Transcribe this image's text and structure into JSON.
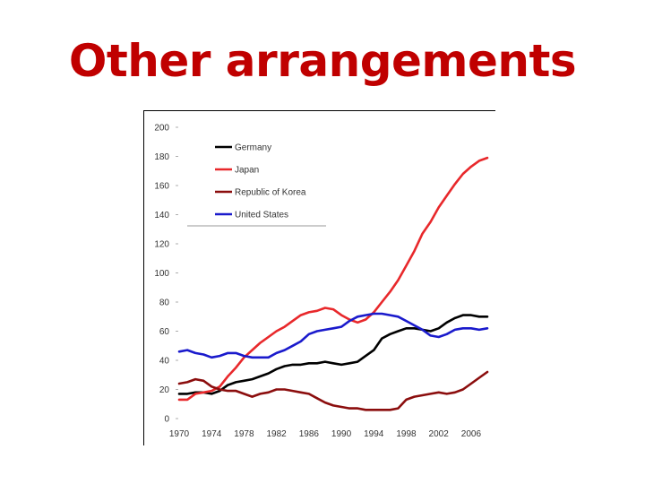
{
  "slide": {
    "title": "Other arrangements"
  },
  "colors": {
    "title": "#c00000",
    "germany": "#000000",
    "japan": "#e8282b",
    "korea": "#8b0d0d",
    "usa": "#1a1acc"
  },
  "chart_data": {
    "type": "line",
    "title": "",
    "xlabel": "",
    "ylabel": "",
    "xlim": [
      1970,
      2008
    ],
    "ylim": [
      0,
      200
    ],
    "yticks": [
      0,
      20,
      40,
      60,
      80,
      100,
      120,
      140,
      160,
      180,
      200
    ],
    "yticklabels": [
      "0",
      "20",
      "40",
      "60",
      "80",
      "100",
      "120",
      "140",
      "160",
      "180",
      "200"
    ],
    "xticks": [
      1970,
      1974,
      1978,
      1982,
      1986,
      1990,
      1994,
      1998,
      2002,
      2006
    ],
    "xticklabels": [
      "1970",
      "1974",
      "1978",
      "1982",
      "1986",
      "1990",
      "1994",
      "1998",
      "2002",
      "2006"
    ],
    "legend_position": "top-left",
    "x": [
      1970,
      1971,
      1972,
      1973,
      1974,
      1975,
      1976,
      1977,
      1978,
      1979,
      1980,
      1981,
      1982,
      1983,
      1984,
      1985,
      1986,
      1987,
      1988,
      1989,
      1990,
      1991,
      1992,
      1993,
      1994,
      1995,
      1996,
      1997,
      1998,
      1999,
      2000,
      2001,
      2002,
      2003,
      2004,
      2005,
      2006,
      2007,
      2008
    ],
    "series": [
      {
        "name": "Germany",
        "color": "#000000",
        "values": [
          17,
          17,
          18,
          18,
          17,
          19,
          23,
          25,
          26,
          27,
          29,
          31,
          34,
          36,
          37,
          37,
          38,
          38,
          39,
          38,
          37,
          38,
          39,
          43,
          47,
          55,
          58,
          60,
          62,
          62,
          61,
          60,
          62,
          66,
          69,
          71,
          71,
          70,
          70
        ]
      },
      {
        "name": "Japan",
        "color": "#e8282b",
        "values": [
          13,
          13,
          17,
          18,
          19,
          22,
          29,
          35,
          42,
          47,
          52,
          56,
          60,
          63,
          67,
          71,
          73,
          74,
          76,
          75,
          71,
          68,
          66,
          68,
          73,
          80,
          87,
          95,
          105,
          115,
          127,
          135,
          145,
          153,
          161,
          168,
          173,
          177,
          179
        ]
      },
      {
        "name": "Republic of Korea",
        "color": "#8b0d0d",
        "values": [
          24,
          25,
          27,
          26,
          22,
          20,
          19,
          19,
          17,
          15,
          17,
          18,
          20,
          20,
          19,
          18,
          17,
          14,
          11,
          9,
          8,
          7,
          7,
          6,
          6,
          6,
          6,
          7,
          13,
          15,
          16,
          17,
          18,
          17,
          18,
          20,
          24,
          28,
          32
        ]
      },
      {
        "name": "United States",
        "color": "#1a1acc",
        "values": [
          46,
          47,
          45,
          44,
          42,
          43,
          45,
          45,
          43,
          42,
          42,
          42,
          45,
          47,
          50,
          53,
          58,
          60,
          61,
          62,
          63,
          67,
          70,
          71,
          72,
          72,
          71,
          70,
          67,
          64,
          61,
          57,
          56,
          58,
          61,
          62,
          62,
          61,
          62
        ]
      }
    ]
  }
}
